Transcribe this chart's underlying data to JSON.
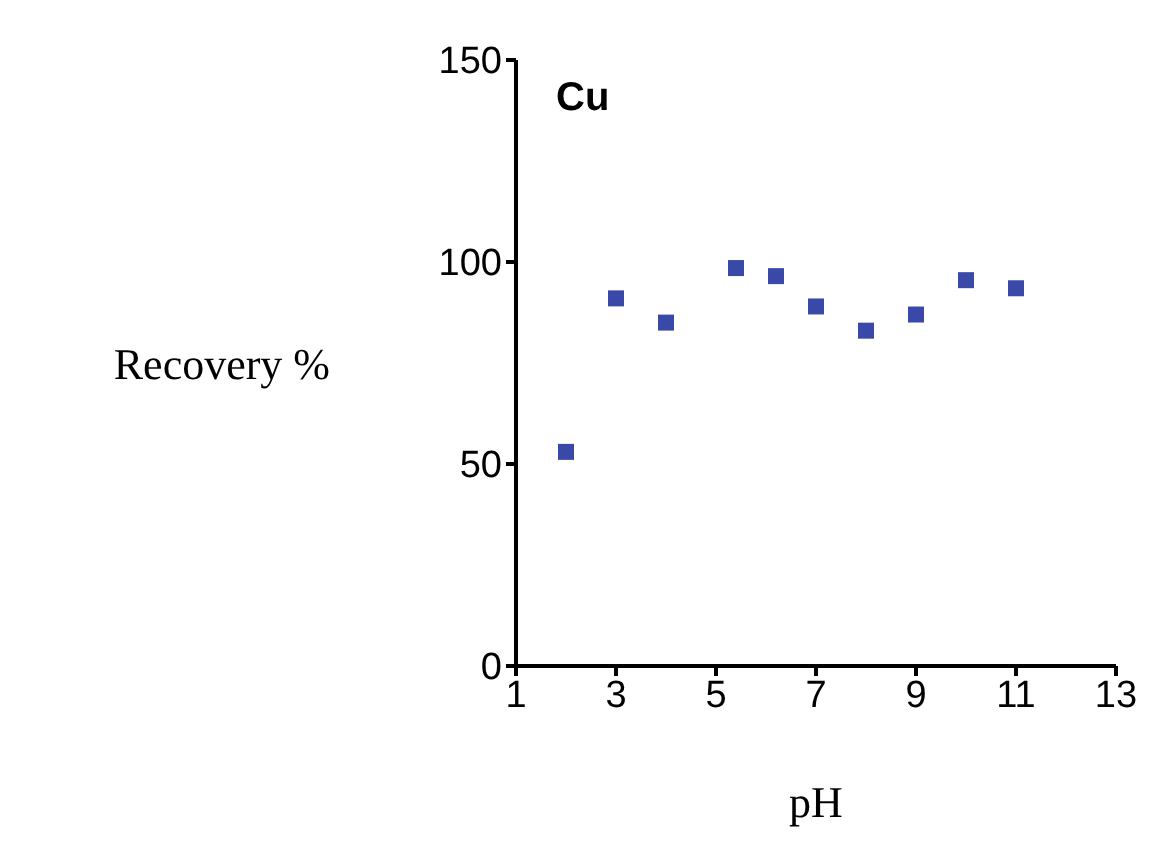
{
  "chart_data": {
    "type": "scatter",
    "xlabel": "pH",
    "ylabel": "Recovery %",
    "annotations": [
      "Cu"
    ],
    "x": [
      2,
      3,
      4,
      5.4,
      6.2,
      7,
      8,
      9,
      10,
      11
    ],
    "series": [
      {
        "color": "#3a48a8",
        "values": [
          53,
          91,
          85,
          98.5,
          96.5,
          89,
          83,
          87,
          95.5,
          93.5
        ]
      }
    ],
    "marker": "square",
    "xlim": [
      1,
      13
    ],
    "xticks": [
      1,
      3,
      5,
      7,
      9,
      11,
      13
    ],
    "ylim": [
      0,
      150
    ],
    "yticks": [
      0,
      50,
      100,
      150
    ],
    "grid": false,
    "legend": false
  }
}
